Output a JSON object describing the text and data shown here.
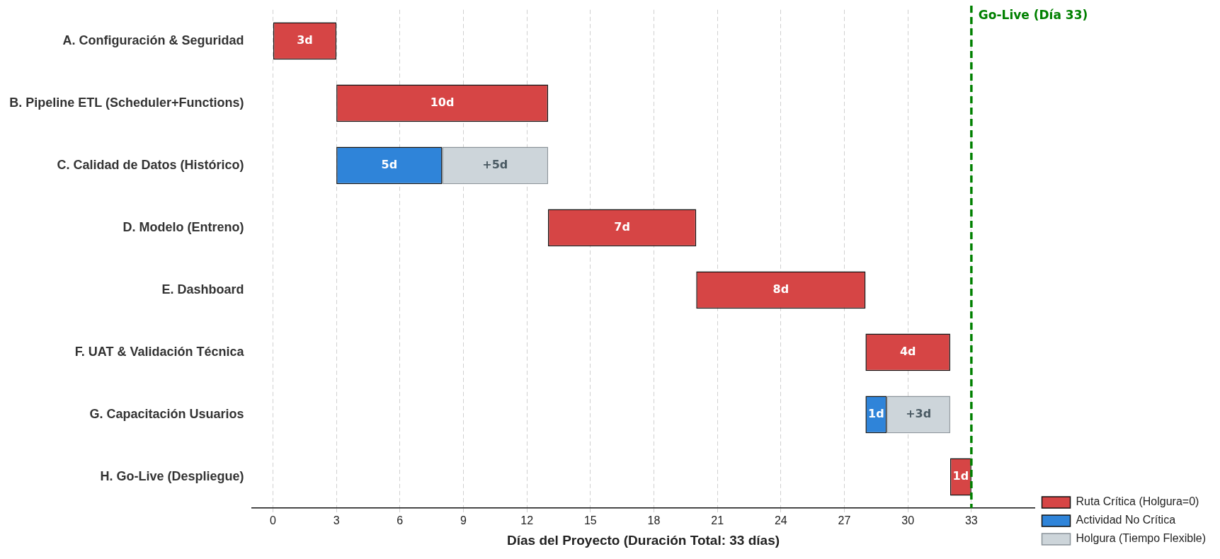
{
  "chart_data": {
    "type": "bar",
    "orientation": "horizontal",
    "xlabel": "Días del Proyecto (Duración Total: 33 días)",
    "categories": [
      "A. Configuración & Seguridad",
      "B. Pipeline ETL (Scheduler+Functions)",
      "C. Calidad de Datos (Histórico)",
      "D. Modelo (Entreno)",
      "E. Dashboard",
      "F. UAT & Validación Técnica",
      "G. Capacitación Usuarios",
      "H. Go-Live (Despliegue)"
    ],
    "series": [
      {
        "name": "Ruta Crítica (Holgura=0)",
        "color": "#d64545",
        "base": [
          0,
          3,
          null,
          13,
          20,
          28,
          null,
          32
        ],
        "values": [
          3,
          10,
          null,
          7,
          8,
          4,
          null,
          1
        ],
        "value_labels": [
          "3d",
          "10d",
          null,
          "7d",
          "8d",
          "4d",
          null,
          "1d"
        ]
      },
      {
        "name": "Actividad No Crítica",
        "color": "#2f84d9",
        "base": [
          null,
          null,
          3,
          null,
          null,
          null,
          28,
          null
        ],
        "values": [
          null,
          null,
          5,
          null,
          null,
          null,
          1,
          null
        ],
        "value_labels": [
          null,
          null,
          "5d",
          null,
          null,
          null,
          "1d",
          null
        ]
      },
      {
        "name": "Holgura (Tiempo Flexible)",
        "color": "#cdd5da",
        "base": [
          null,
          null,
          8,
          null,
          null,
          null,
          29,
          null
        ],
        "values": [
          null,
          null,
          5,
          null,
          null,
          null,
          3,
          null
        ],
        "value_labels": [
          null,
          null,
          "+5d",
          null,
          null,
          null,
          "+3d",
          null
        ]
      }
    ],
    "xlim": [
      -1,
      36
    ],
    "xticks": [
      0,
      3,
      6,
      9,
      12,
      15,
      18,
      21,
      24,
      27,
      30,
      33
    ],
    "grid": "x",
    "legend": "bottom right",
    "ref_lines": [
      {
        "axis": "x",
        "value": 33,
        "label": "Go-Live (Día 33)",
        "color": "#008000",
        "line_style": "dashed"
      }
    ]
  }
}
